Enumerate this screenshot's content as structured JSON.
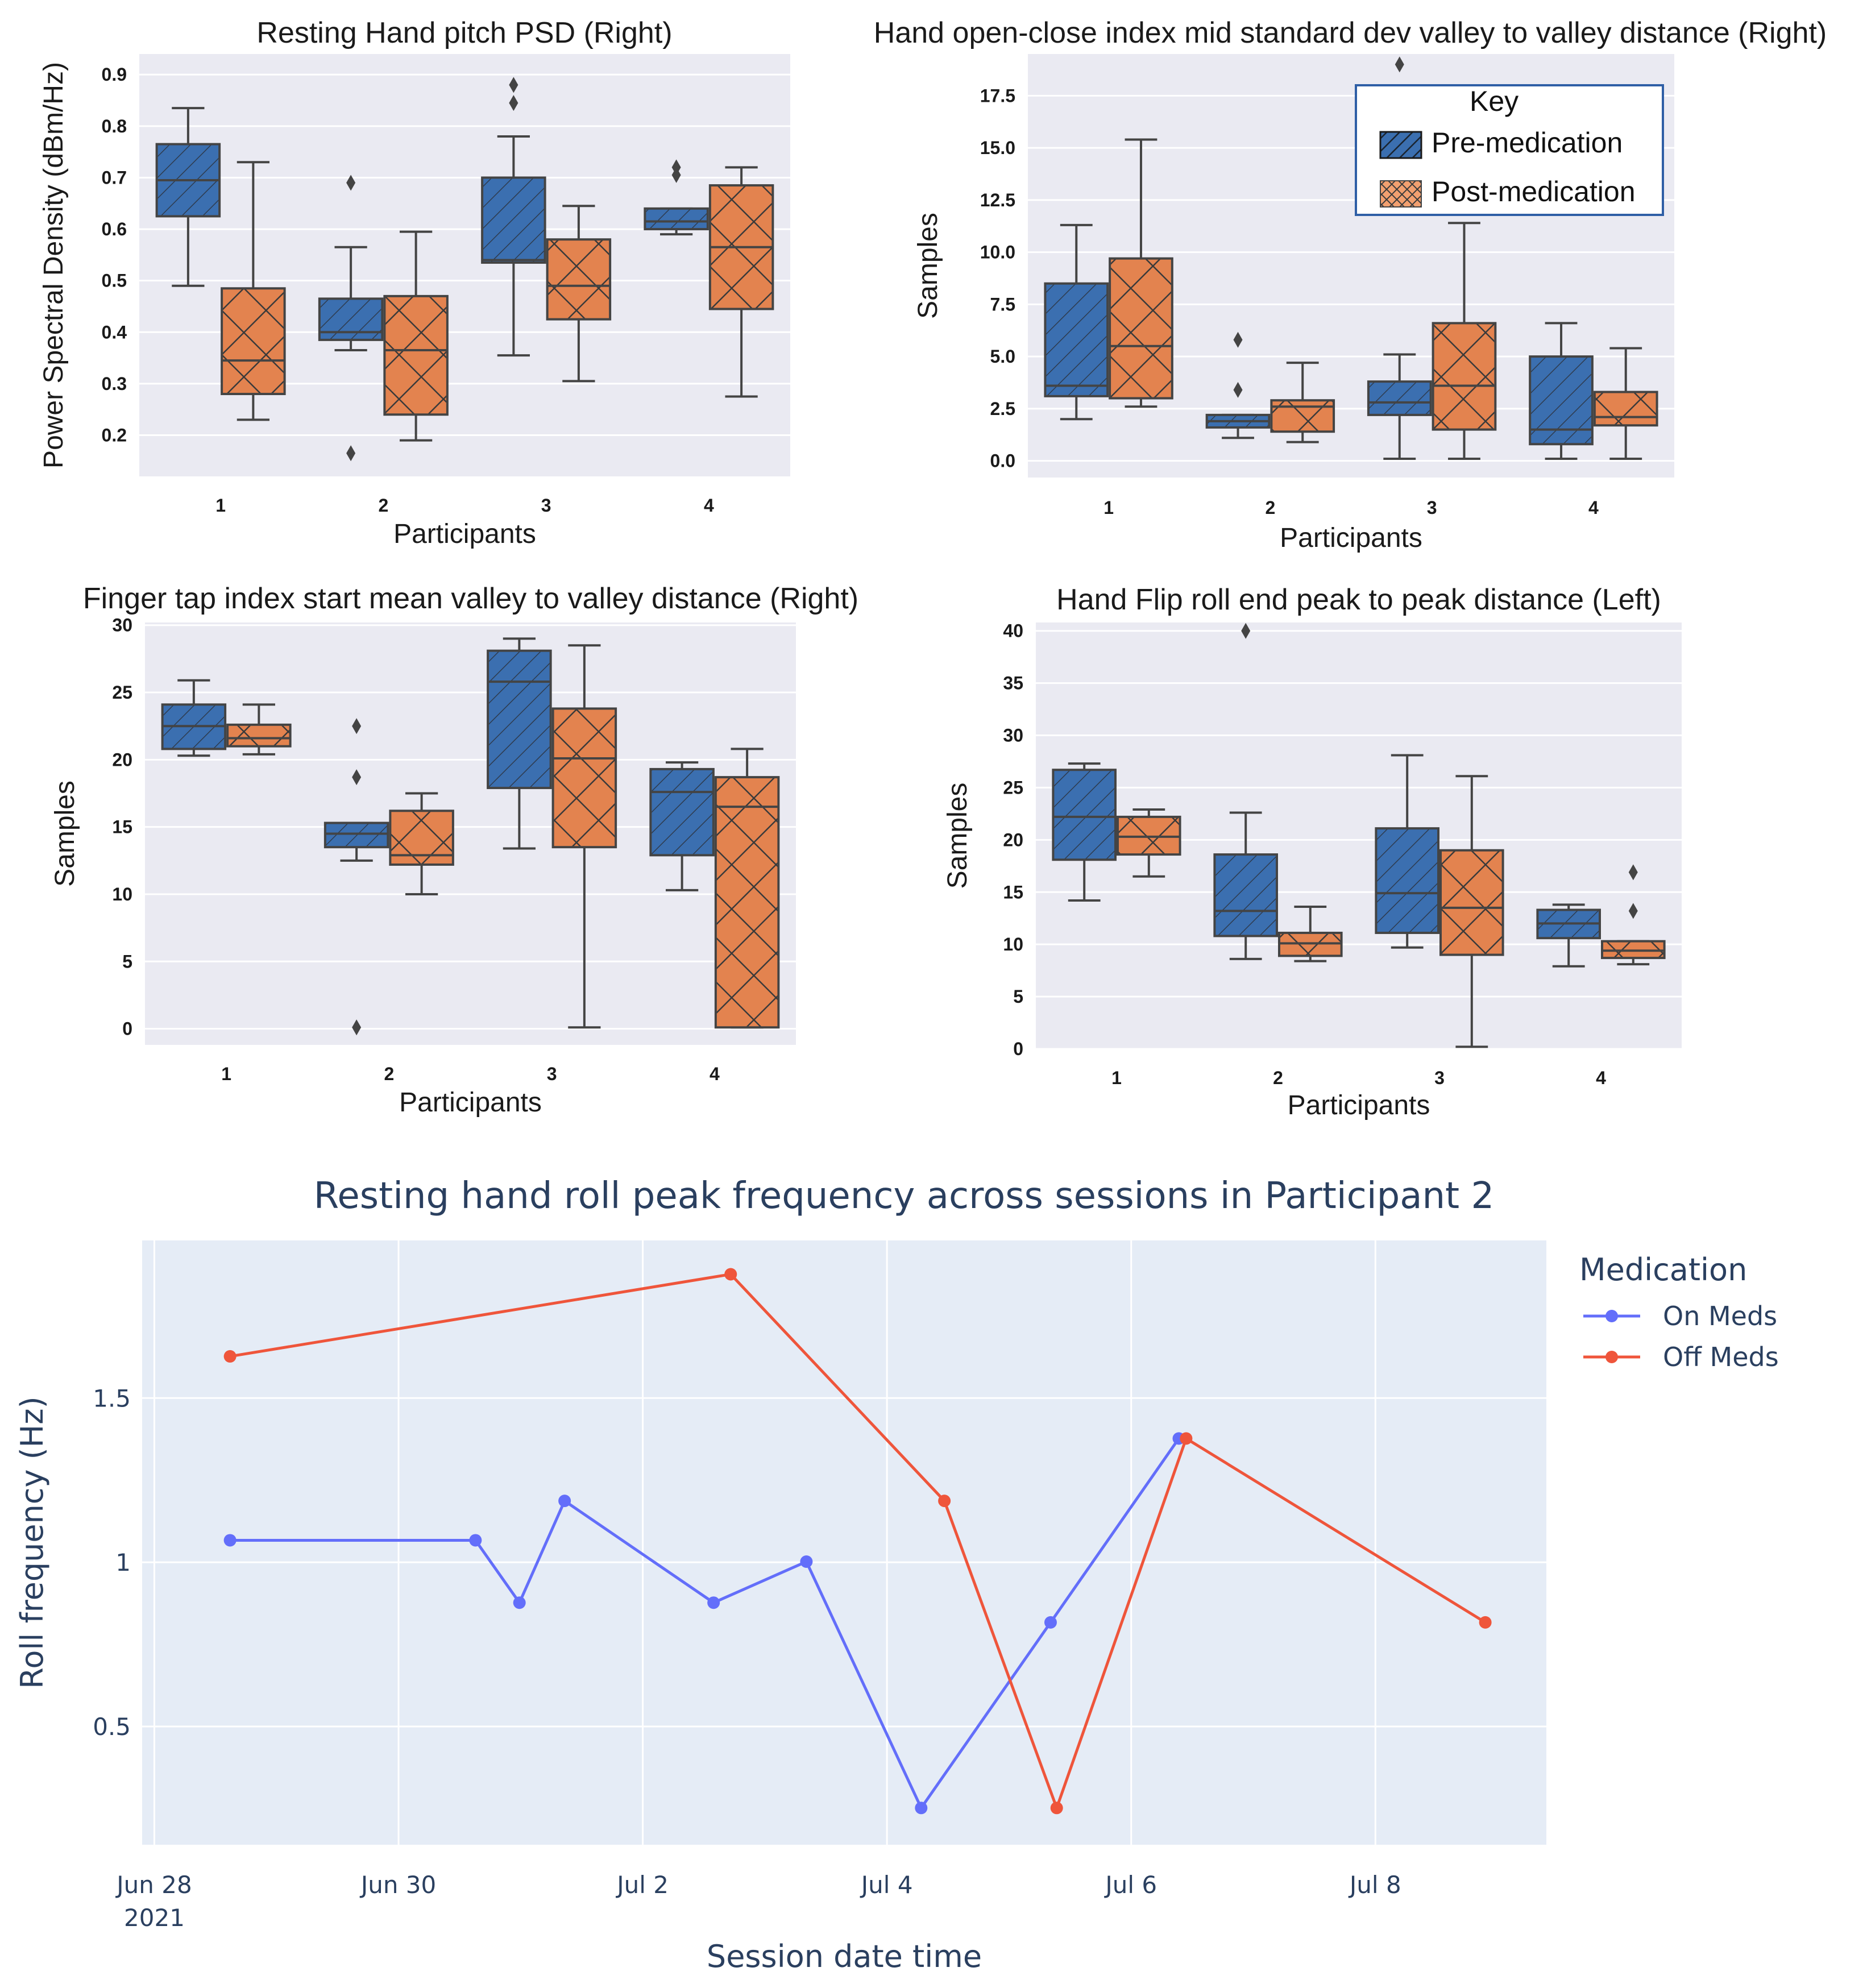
{
  "colors": {
    "pre": "#3b6fb0",
    "post": "#e3834f",
    "box_bg": "#eaeaf2",
    "plotly_bg": "#e5ecf6",
    "on_meds": "#636efa",
    "off_meds": "#ef553b",
    "text_dark": "#2a3f5f"
  },
  "key": {
    "title": "Key",
    "items": [
      "Pre-medication",
      "Post-medication"
    ]
  },
  "chart_data": [
    {
      "type": "box",
      "title": "Resting Hand pitch PSD (Right)",
      "xlabel": "Participants",
      "ylabel": "Power Spectral Density (dBm/Hz)",
      "categories": [
        "1",
        "2",
        "3",
        "4"
      ],
      "ylim": [
        0.12,
        0.94
      ],
      "yticks": [
        0.2,
        0.3,
        0.4,
        0.5,
        0.6,
        0.7,
        0.8,
        0.9
      ],
      "ytick_labels": [
        "0.2",
        "0.3",
        "0.4",
        "0.5",
        "0.6",
        "0.7",
        "0.8",
        "0.9"
      ],
      "series": [
        {
          "name": "Pre-medication",
          "boxes": [
            {
              "whislo": 0.49,
              "q1": 0.625,
              "med": 0.695,
              "q3": 0.765,
              "whishi": 0.835,
              "fliers": []
            },
            {
              "whislo": 0.365,
              "q1": 0.385,
              "med": 0.4,
              "q3": 0.465,
              "whishi": 0.565,
              "fliers": [
                0.69,
                0.165
              ]
            },
            {
              "whislo": 0.355,
              "q1": 0.535,
              "med": 0.54,
              "q3": 0.7,
              "whishi": 0.78,
              "fliers": [
                0.88,
                0.845
              ]
            },
            {
              "whislo": 0.59,
              "q1": 0.6,
              "med": 0.615,
              "q3": 0.64,
              "whishi": 0.64,
              "fliers": [
                0.72,
                0.705
              ]
            }
          ]
        },
        {
          "name": "Post-medication",
          "boxes": [
            {
              "whislo": 0.23,
              "q1": 0.28,
              "med": 0.345,
              "q3": 0.485,
              "whishi": 0.73,
              "fliers": []
            },
            {
              "whislo": 0.19,
              "q1": 0.24,
              "med": 0.365,
              "q3": 0.47,
              "whishi": 0.595,
              "fliers": []
            },
            {
              "whislo": 0.305,
              "q1": 0.425,
              "med": 0.49,
              "q3": 0.58,
              "whishi": 0.645,
              "fliers": []
            },
            {
              "whislo": 0.275,
              "q1": 0.445,
              "med": 0.565,
              "q3": 0.685,
              "whishi": 0.72,
              "fliers": []
            }
          ]
        }
      ]
    },
    {
      "type": "box",
      "title": "Hand open-close index mid standard dev valley to valley distance (Right)",
      "xlabel": "Participants",
      "ylabel": "Samples",
      "categories": [
        "1",
        "2",
        "3",
        "4"
      ],
      "ylim": [
        -0.8,
        19.5
      ],
      "yticks": [
        0,
        2.5,
        5,
        7.5,
        10,
        12.5,
        15,
        17.5
      ],
      "ytick_labels": [
        "0.0",
        "2.5",
        "5.0",
        "7.5",
        "10.0",
        "12.5",
        "15.0",
        "17.5"
      ],
      "series": [
        {
          "name": "Pre-medication",
          "boxes": [
            {
              "whislo": 2.0,
              "q1": 3.1,
              "med": 3.6,
              "q3": 8.5,
              "whishi": 11.3,
              "fliers": []
            },
            {
              "whislo": 1.1,
              "q1": 1.6,
              "med": 1.9,
              "q3": 2.2,
              "whishi": 2.2,
              "fliers": [
                5.8,
                3.4
              ]
            },
            {
              "whislo": 0.1,
              "q1": 2.2,
              "med": 2.8,
              "q3": 3.8,
              "whishi": 5.1,
              "fliers": [
                19.0
              ]
            },
            {
              "whislo": 0.1,
              "q1": 0.8,
              "med": 1.5,
              "q3": 5.0,
              "whishi": 6.6,
              "fliers": []
            }
          ]
        },
        {
          "name": "Post-medication",
          "boxes": [
            {
              "whislo": 2.6,
              "q1": 3.0,
              "med": 5.5,
              "q3": 9.7,
              "whishi": 15.4,
              "fliers": []
            },
            {
              "whislo": 0.9,
              "q1": 1.4,
              "med": 2.6,
              "q3": 2.9,
              "whishi": 4.7,
              "fliers": []
            },
            {
              "whislo": 0.1,
              "q1": 1.5,
              "med": 3.6,
              "q3": 6.6,
              "whishi": 11.4,
              "fliers": []
            },
            {
              "whislo": 0.1,
              "q1": 1.7,
              "med": 2.1,
              "q3": 3.3,
              "whishi": 5.4,
              "fliers": []
            }
          ]
        }
      ]
    },
    {
      "type": "box",
      "title": "Finger tap index start mean valley to valley distance  (Right)",
      "xlabel": "Participants",
      "ylabel": "Samples",
      "categories": [
        "1",
        "2",
        "3",
        "4"
      ],
      "ylim": [
        -1.2,
        30.2
      ],
      "yticks": [
        0,
        5,
        10,
        15,
        20,
        25,
        30
      ],
      "ytick_labels": [
        "0",
        "5",
        "10",
        "15",
        "20",
        "25",
        "30"
      ],
      "series": [
        {
          "name": "Pre-medication",
          "boxes": [
            {
              "whislo": 20.3,
              "q1": 20.8,
              "med": 22.5,
              "q3": 24.1,
              "whishi": 25.9,
              "fliers": []
            },
            {
              "whislo": 12.5,
              "q1": 13.5,
              "med": 14.5,
              "q3": 15.3,
              "whishi": 15.3,
              "fliers": [
                22.5,
                18.7,
                0.1
              ]
            },
            {
              "whislo": 13.4,
              "q1": 17.9,
              "med": 25.8,
              "q3": 28.1,
              "whishi": 29.0,
              "fliers": []
            },
            {
              "whislo": 10.3,
              "q1": 12.9,
              "med": 17.6,
              "q3": 19.3,
              "whishi": 19.8,
              "fliers": []
            }
          ]
        },
        {
          "name": "Post-medication",
          "boxes": [
            {
              "whislo": 20.4,
              "q1": 21.0,
              "med": 21.6,
              "q3": 22.6,
              "whishi": 24.1,
              "fliers": []
            },
            {
              "whislo": 10.0,
              "q1": 12.2,
              "med": 12.9,
              "q3": 16.2,
              "whishi": 17.5,
              "fliers": []
            },
            {
              "whislo": 0.1,
              "q1": 13.5,
              "med": 20.1,
              "q3": 23.8,
              "whishi": 28.5,
              "fliers": []
            },
            {
              "whislo": 0.1,
              "q1": 0.1,
              "med": 16.5,
              "q3": 18.7,
              "whishi": 20.8,
              "fliers": []
            }
          ]
        }
      ]
    },
    {
      "type": "box",
      "title": "Hand Flip roll end peak to peak distance (Left)",
      "xlabel": "Participants",
      "ylabel": "Samples",
      "categories": [
        "1",
        "2",
        "3",
        "4"
      ],
      "ylim": [
        0,
        40.8
      ],
      "yticks": [
        0,
        5,
        10,
        15,
        20,
        25,
        30,
        35,
        40
      ],
      "ytick_labels": [
        "0",
        "5",
        "10",
        "15",
        "20",
        "25",
        "30",
        "35",
        "40"
      ],
      "series": [
        {
          "name": "Pre-medication",
          "boxes": [
            {
              "whislo": 14.2,
              "q1": 18.1,
              "med": 22.2,
              "q3": 26.7,
              "whishi": 27.3,
              "fliers": []
            },
            {
              "whislo": 8.6,
              "q1": 10.8,
              "med": 13.2,
              "q3": 18.6,
              "whishi": 22.6,
              "fliers": [
                40.0
              ]
            },
            {
              "whislo": 9.7,
              "q1": 11.1,
              "med": 14.9,
              "q3": 21.1,
              "whishi": 28.1,
              "fliers": []
            },
            {
              "whislo": 7.9,
              "q1": 10.6,
              "med": 12.0,
              "q3": 13.3,
              "whishi": 13.8,
              "fliers": []
            }
          ]
        },
        {
          "name": "Post-medication",
          "boxes": [
            {
              "whislo": 16.5,
              "q1": 18.6,
              "med": 20.3,
              "q3": 22.2,
              "whishi": 22.9,
              "fliers": []
            },
            {
              "whislo": 8.4,
              "q1": 8.9,
              "med": 10.1,
              "q3": 11.1,
              "whishi": 13.6,
              "fliers": []
            },
            {
              "whislo": 0.2,
              "q1": 9.0,
              "med": 13.5,
              "q3": 19.0,
              "whishi": 26.1,
              "fliers": []
            },
            {
              "whislo": 8.1,
              "q1": 8.7,
              "med": 9.4,
              "q3": 10.3,
              "whishi": 10.3,
              "fliers": [
                16.9,
                13.2
              ]
            }
          ]
        }
      ]
    },
    {
      "type": "line",
      "title": "Resting hand roll peak frequency across sessions in Participant 2",
      "xlabel": "Session date time",
      "ylabel": "Roll frequency (Hz)",
      "xlim": [
        -0.1,
        11.4
      ],
      "ylim": [
        0.14,
        1.98
      ],
      "xticks": [
        0,
        2,
        4,
        6,
        8,
        10
      ],
      "xtick_labels": [
        "Jun 28",
        "Jun 30",
        "Jul 2",
        "Jul 4",
        "Jul 6",
        "Jul 8"
      ],
      "xtick_sublabel": "2021",
      "yticks": [
        0.5,
        1.0,
        1.5
      ],
      "ytick_labels": [
        "0.5",
        "1",
        "1.5"
      ],
      "legend_title": "Medication",
      "series": [
        {
          "name": "On Meds",
          "x": [
            0.62,
            2.63,
            2.99,
            3.36,
            4.58,
            5.34,
            6.28,
            7.34,
            8.39
          ],
          "y": [
            1.067,
            1.067,
            0.877,
            1.187,
            0.877,
            1.002,
            0.252,
            0.817,
            1.377
          ]
        },
        {
          "name": "Off Meds",
          "x": [
            0.62,
            4.72,
            6.47,
            7.39,
            8.45,
            10.9
          ],
          "y": [
            1.627,
            1.877,
            1.187,
            0.252,
            1.377,
            0.817
          ]
        }
      ]
    }
  ]
}
